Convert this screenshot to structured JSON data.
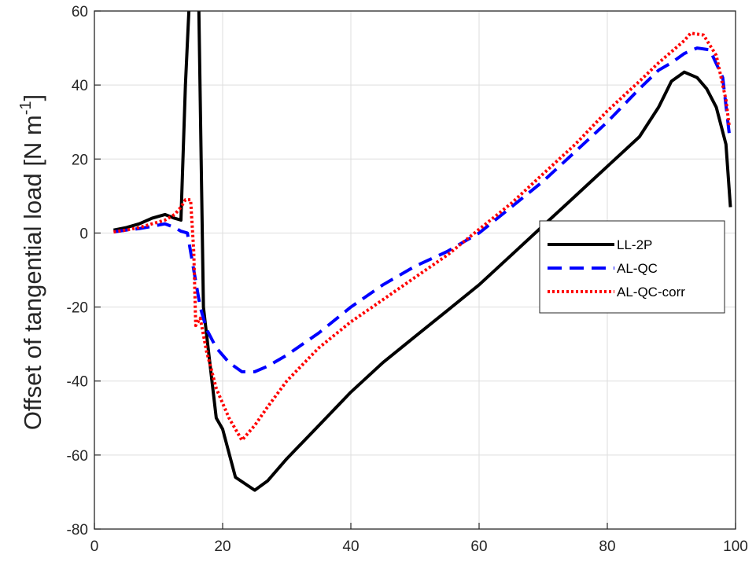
{
  "chart_data": {
    "type": "line",
    "title": "",
    "xlabel": "",
    "ylabel": "Offset of tangential load [N m",
    "ylabel_superscript": "-1",
    "ylabel_suffix": "]",
    "xlim": [
      0,
      100
    ],
    "ylim": [
      -80,
      60
    ],
    "x_ticks": [
      0,
      20,
      40,
      60,
      80,
      100
    ],
    "y_ticks": [
      -80,
      -60,
      -40,
      -20,
      0,
      20,
      40,
      60
    ],
    "x_tick_labels": [
      "0",
      "20",
      "40",
      "60",
      "80",
      "100"
    ],
    "y_tick_labels": [
      "-80",
      "-60",
      "-40",
      "-20",
      "0",
      "20",
      "40",
      "60"
    ],
    "grid": true,
    "legend_position": "right",
    "series": [
      {
        "name": "LL-2P",
        "color": "#000000",
        "style": "solid",
        "x": [
          3,
          5,
          7,
          9,
          11,
          12.5,
          13.5,
          14.2,
          15,
          15.7,
          16.3,
          17,
          18,
          19,
          20,
          22,
          25,
          27,
          30,
          35,
          40,
          45,
          50,
          55,
          60,
          65,
          70,
          75,
          80,
          85,
          88,
          90,
          92,
          94,
          95.5,
          97,
          98.5,
          99.2
        ],
        "y": [
          0.8,
          1.5,
          2.5,
          4,
          5,
          4,
          3.5,
          40,
          70,
          70,
          60,
          -20,
          -35,
          -50,
          -53,
          -66,
          -69.5,
          -67,
          -61,
          -52,
          -43,
          -35,
          -28,
          -21,
          -14,
          -6,
          2,
          10,
          18,
          26,
          34,
          41,
          43.5,
          42,
          39,
          34,
          24,
          7
        ]
      },
      {
        "name": "AL-QC",
        "color": "#0000ff",
        "style": "dashed",
        "x": [
          3,
          5,
          7,
          9,
          11,
          12.5,
          13.5,
          14.5,
          15.5,
          16.5,
          17.5,
          19,
          21,
          23,
          25,
          27,
          30,
          35,
          40,
          45,
          50,
          55,
          58,
          60,
          65,
          70,
          75,
          80,
          85,
          88,
          90,
          92,
          94,
          96,
          98,
          99
        ],
        "y": [
          0.3,
          0.8,
          1.2,
          1.8,
          2.5,
          1.5,
          0.5,
          0,
          -10,
          -20,
          -26,
          -31,
          -35,
          -37.5,
          -37.5,
          -36,
          -33,
          -27,
          -20,
          -14,
          -9,
          -5,
          -2,
          0,
          7,
          14,
          22,
          30,
          39,
          44,
          46,
          48.5,
          50,
          49.5,
          42,
          27
        ]
      },
      {
        "name": "AL-QC-corr",
        "color": "#ff0000",
        "style": "dotted",
        "x": [
          3,
          5,
          7,
          9,
          11,
          12.5,
          13.5,
          14.2,
          15,
          15.5,
          15.8,
          16.5,
          17.5,
          19,
          21,
          23,
          25,
          27,
          30,
          35,
          40,
          45,
          50,
          55,
          60,
          65,
          70,
          75,
          80,
          85,
          88,
          90,
          92,
          93,
          95,
          97,
          98.5,
          99
        ],
        "y": [
          0.3,
          0.8,
          1.5,
          2.5,
          3.5,
          5,
          7,
          9,
          9,
          -5,
          -25,
          -23,
          -32,
          -42,
          -50,
          -56,
          -52,
          -47,
          -40,
          -31,
          -24,
          -18,
          -12,
          -6,
          1,
          8,
          16,
          24,
          33,
          41,
          46,
          49,
          52,
          54,
          53.5,
          48,
          36,
          29
        ]
      }
    ]
  }
}
